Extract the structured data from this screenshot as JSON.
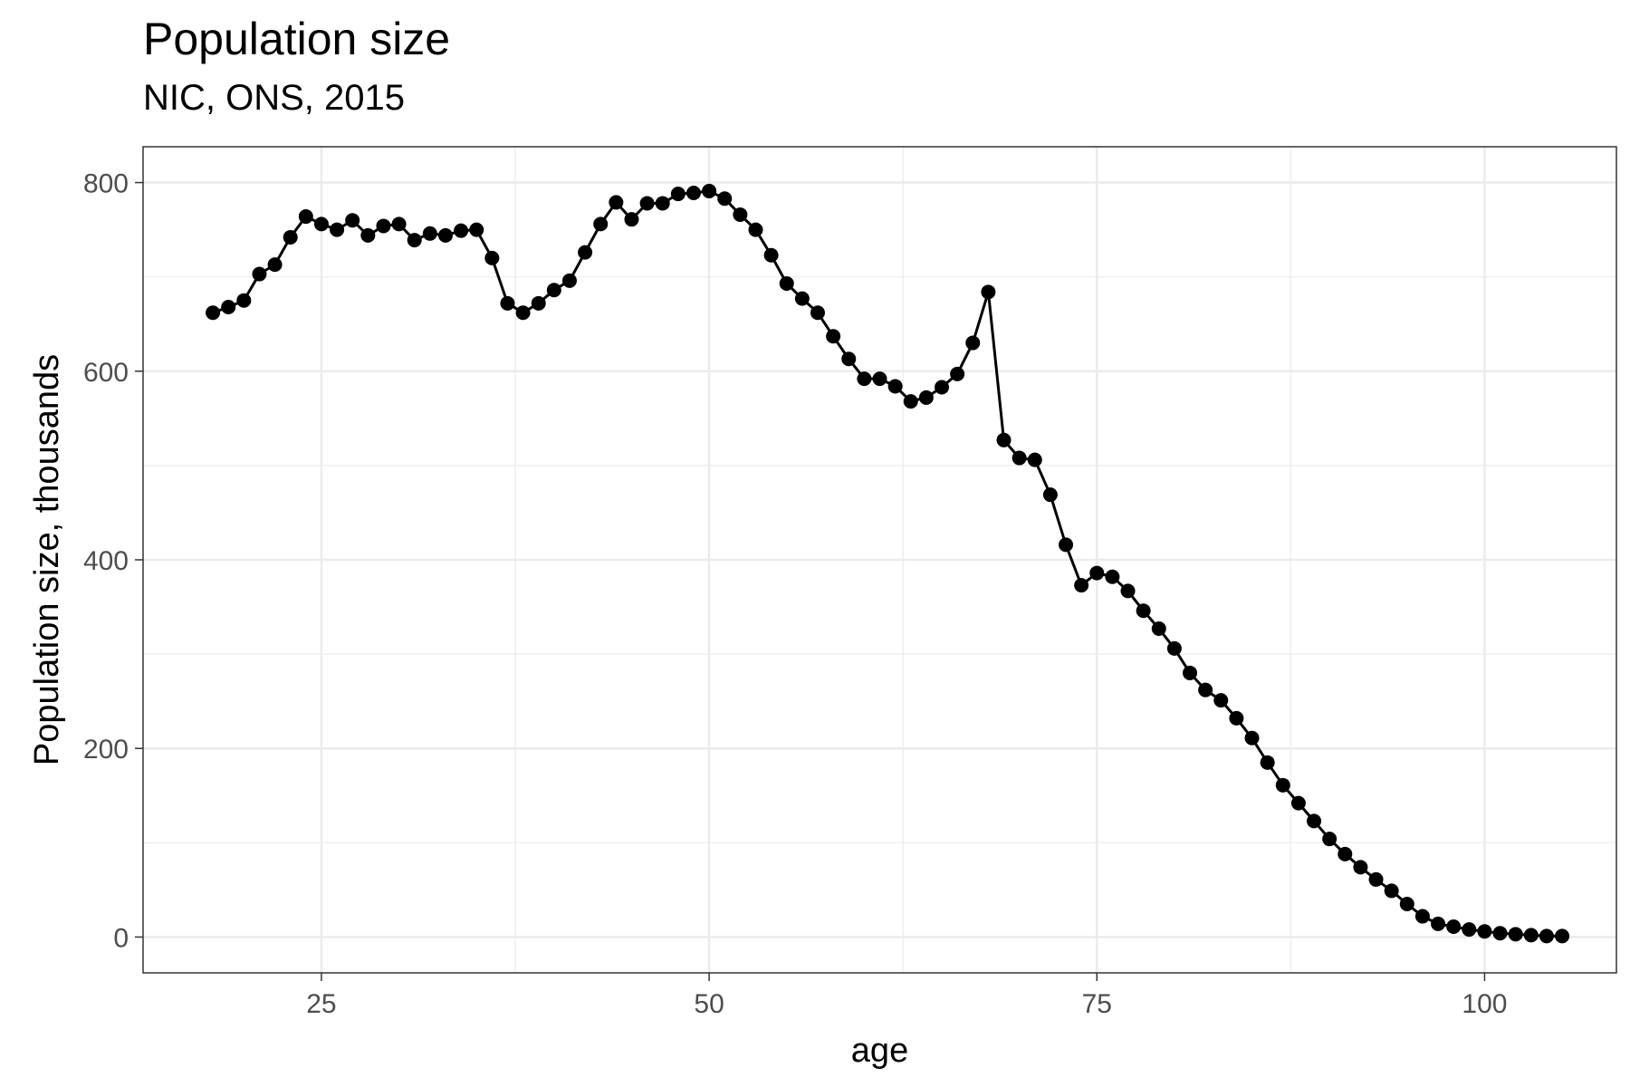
{
  "chart_data": {
    "type": "line",
    "title": "Population size",
    "subtitle": "NIC, ONS, 2015",
    "xlabel": "age",
    "ylabel": "Population size, thousands",
    "xlim": [
      13.5,
      108.5
    ],
    "ylim": [
      -38,
      838
    ],
    "xticks": [
      25,
      50,
      75,
      100
    ],
    "yticks": [
      0,
      200,
      400,
      600,
      800
    ],
    "grid": true,
    "markers": true,
    "series": [
      {
        "x": [
          18,
          19,
          20,
          21,
          22,
          23,
          24,
          25,
          26,
          27,
          28,
          29,
          30,
          31,
          32,
          33,
          34,
          35,
          36,
          37,
          38,
          39,
          40,
          41,
          42,
          43,
          44,
          45,
          46,
          47,
          48,
          49,
          50,
          51,
          52,
          53,
          54,
          55,
          56,
          57,
          58,
          59,
          60,
          61,
          62,
          63,
          64,
          65,
          66,
          67,
          68,
          69,
          70,
          71,
          72,
          73,
          74,
          75,
          76,
          77,
          78,
          79,
          80,
          81,
          82,
          83,
          84,
          85,
          86,
          87,
          88,
          89,
          90,
          91,
          92,
          93,
          94,
          95,
          96,
          97,
          98,
          99,
          100,
          101,
          102,
          103,
          104,
          105
        ],
        "y": [
          662,
          668,
          675,
          703,
          713,
          742,
          764,
          756,
          750,
          760,
          744,
          754,
          756,
          739,
          746,
          744,
          749,
          750,
          720,
          672,
          662,
          672,
          686,
          696,
          726,
          756,
          779,
          761,
          778,
          778,
          788,
          789,
          791,
          783,
          766,
          750,
          723,
          693,
          677,
          662,
          637,
          613,
          592,
          592,
          584,
          568,
          572,
          583,
          597,
          630,
          684,
          527,
          508,
          506,
          469,
          416,
          373,
          386,
          382,
          367,
          346,
          327,
          306,
          280,
          262,
          251,
          232,
          211,
          185,
          161,
          142,
          123,
          104,
          88,
          74,
          61,
          49,
          35,
          22,
          14,
          11,
          8,
          6,
          4,
          3,
          2,
          1,
          1
        ]
      }
    ]
  }
}
